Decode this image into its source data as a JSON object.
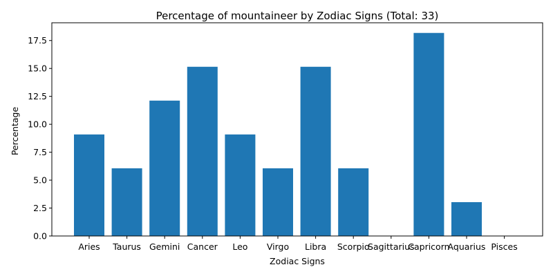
{
  "chart_data": {
    "type": "bar",
    "title": "Percentage of mountaineer by Zodiac Signs (Total: 33)",
    "xlabel": "Zodiac Signs",
    "ylabel": "Percentage",
    "categories": [
      "Aries",
      "Taurus",
      "Gemini",
      "Cancer",
      "Leo",
      "Virgo",
      "Libra",
      "Scorpio",
      "Sagittarius",
      "Capricorn",
      "Aquarius",
      "Pisces"
    ],
    "values": [
      9.09,
      6.06,
      12.12,
      15.15,
      9.09,
      6.06,
      15.15,
      6.06,
      0,
      18.18,
      3.03,
      0
    ],
    "yticks": [
      "0.0",
      "2.5",
      "5.0",
      "7.5",
      "10.0",
      "12.5",
      "15.0",
      "17.5"
    ],
    "ylim": [
      0,
      19.09
    ],
    "bar_color": "#1f77b4",
    "grid": false,
    "legend": "none"
  }
}
